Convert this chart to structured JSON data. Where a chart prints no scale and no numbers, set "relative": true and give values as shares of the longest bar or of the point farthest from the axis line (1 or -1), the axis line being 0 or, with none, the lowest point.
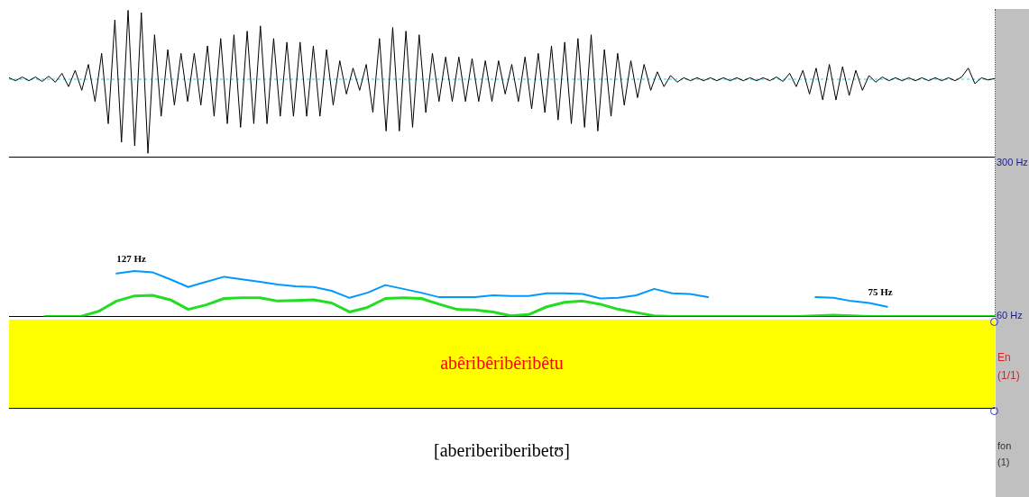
{
  "chart_data": [
    {
      "type": "line",
      "relative": true,
      "tick_labels": false,
      "ref_lines": [
        {
          "axis": "y",
          "value": 0,
          "color": "#33cccc",
          "line_style": "dashed"
        }
      ],
      "categories": [
        null,
        null,
        null,
        null,
        null,
        null,
        null,
        null,
        null,
        null,
        null,
        null,
        null,
        null,
        null,
        null,
        null,
        null,
        null,
        null,
        null,
        null,
        null,
        null,
        null,
        null,
        null,
        null,
        null,
        null,
        null,
        null,
        null,
        null,
        null,
        null,
        null,
        null,
        null,
        null,
        null,
        null,
        null,
        null,
        null,
        null,
        null,
        null,
        null,
        null,
        null,
        null,
        null,
        null,
        null,
        null,
        null,
        null,
        null,
        null,
        null,
        null,
        null,
        null,
        null,
        null,
        null,
        null,
        null,
        null,
        null,
        null,
        null,
        null,
        null,
        null,
        null,
        null,
        null,
        null,
        null,
        null,
        null,
        null,
        null,
        null,
        null,
        null,
        null,
        null,
        null,
        null,
        null,
        null,
        null,
        null,
        null,
        null,
        null,
        null,
        null,
        null,
        null,
        null,
        null,
        null,
        null,
        null,
        null,
        null,
        null,
        null,
        null,
        null,
        null,
        null,
        null,
        null,
        null,
        null,
        null,
        null,
        null,
        null,
        null,
        null,
        null,
        null,
        null,
        null,
        null,
        null,
        null,
        null,
        null,
        null,
        null,
        null,
        null,
        null,
        null,
        null,
        null,
        null,
        null,
        null,
        null,
        null,
        null,
        null
      ],
      "series": [
        {
          "color": "#000000",
          "values": [
            0.02,
            -0.02,
            0.03,
            -0.02,
            0.03,
            -0.03,
            0.04,
            -0.04,
            0.08,
            -0.1,
            0.12,
            -0.15,
            0.2,
            -0.3,
            0.35,
            -0.6,
            0.8,
            -0.85,
            0.93,
            -0.9,
            0.9,
            -1,
            0.6,
            -0.5,
            0.4,
            -0.35,
            0.35,
            -0.3,
            0.35,
            -0.35,
            0.45,
            -0.5,
            0.55,
            -0.6,
            0.6,
            -0.65,
            0.65,
            -0.6,
            0.72,
            -0.6,
            0.55,
            -0.5,
            0.5,
            -0.5,
            0.5,
            -0.5,
            0.45,
            -0.5,
            0.4,
            -0.35,
            0.25,
            -0.2,
            0.15,
            -0.15,
            0.2,
            -0.45,
            0.55,
            -0.7,
            0.7,
            -0.7,
            0.65,
            -0.65,
            0.6,
            -0.45,
            0.35,
            -0.3,
            0.3,
            -0.3,
            0.3,
            -0.3,
            0.28,
            -0.3,
            0.25,
            -0.3,
            0.25,
            -0.2,
            0.2,
            -0.3,
            0.3,
            -0.4,
            0.35,
            -0.45,
            0.45,
            -0.55,
            0.5,
            -0.6,
            0.55,
            -0.65,
            0.6,
            -0.7,
            0.4,
            -0.5,
            0.35,
            -0.35,
            0.25,
            -0.25,
            0.2,
            -0.15,
            0.1,
            -0.1,
            0.05,
            -0.04,
            0.02,
            -0.02,
            0.02,
            -0.02,
            0.02,
            -0.02,
            0.02,
            -0.02,
            0.02,
            -0.02,
            0.02,
            -0.02,
            0.02,
            -0.02,
            0.03,
            -0.03,
            0.08,
            -0.1,
            0.12,
            -0.2,
            0.15,
            -0.28,
            0.2,
            -0.28,
            0.17,
            -0.22,
            0.12,
            -0.15,
            0.05,
            -0.04,
            0.03,
            -0.02,
            0.02,
            -0.02,
            0.02,
            -0.02,
            0.02,
            -0.02,
            0.02,
            -0.02,
            0.02,
            -0.02,
            0.03,
            0.15,
            -0.06,
            0.02,
            -0.01,
            0.01
          ]
        }
      ]
    },
    {
      "type": "line",
      "tick_labels": "y",
      "ylim": [
        60,
        300
      ],
      "yticks": [
        {
          "value": 60,
          "label": "60 Hz"
        },
        {
          "value": 300,
          "label": "300 Hz"
        }
      ],
      "categories": [
        null,
        null,
        null,
        null,
        null,
        null,
        null,
        null,
        null,
        null,
        null,
        null,
        null,
        null,
        null,
        null,
        null,
        null,
        null,
        null,
        null,
        null,
        null,
        null,
        null,
        null,
        null,
        null,
        null,
        null,
        null,
        null,
        null,
        null,
        null,
        null,
        null,
        null,
        null,
        null,
        null,
        null,
        null,
        null,
        null,
        null,
        null,
        null,
        null,
        null,
        null,
        null,
        null,
        null,
        null,
        null
      ],
      "series": [
        {
          "color": "#0099ff",
          "values": [
            null,
            null,
            null,
            null,
            null,
            null,
            127,
            131,
            129,
            118,
            106,
            114,
            122,
            118,
            114,
            110,
            107,
            106,
            100,
            89,
            97,
            109,
            103,
            97,
            90,
            90,
            90,
            93,
            92,
            92,
            96,
            96,
            95,
            88,
            89,
            93,
            103,
            96,
            95,
            90,
            null,
            null,
            null,
            null,
            null,
            90,
            89,
            84,
            81,
            75,
            null,
            null,
            null,
            null,
            null,
            null
          ]
        },
        {
          "color": "#22dd22",
          "values": [
            null,
            null,
            60,
            60,
            60,
            68,
            84,
            92,
            93,
            86,
            71,
            78,
            88,
            89,
            89,
            84,
            85,
            86,
            81,
            67,
            74,
            88,
            89,
            88,
            79,
            71,
            70,
            67,
            61,
            63,
            75,
            82,
            84,
            79,
            71,
            66,
            61,
            60,
            60,
            60,
            60,
            60,
            60,
            60,
            60,
            61,
            62,
            61,
            60,
            60,
            60,
            60,
            60,
            60,
            60,
            60
          ]
        }
      ],
      "annotations": [
        {
          "text": "127 Hz",
          "y": 127
        },
        {
          "text": "75 Hz",
          "y": 75
        }
      ]
    },
    {
      "type": "other",
      "annotations": [
        "abêribêribêribêtu",
        "En (1/1)",
        "[aberiberiberibetʊ]",
        "fon (1)"
      ]
    }
  ]
}
